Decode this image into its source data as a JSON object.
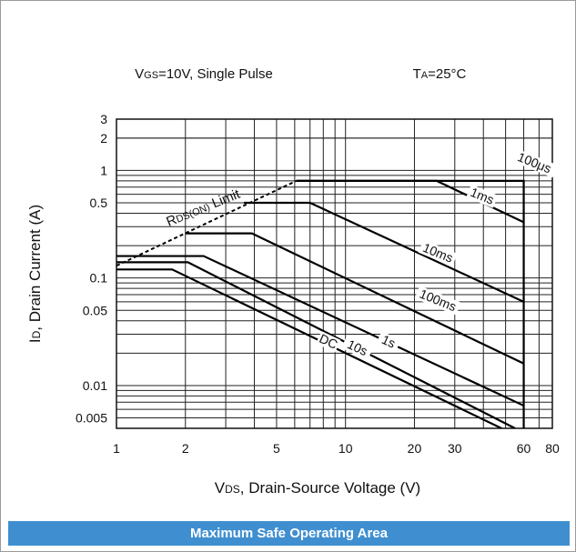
{
  "chart_data": {
    "type": "line",
    "subtitle_conditions": "VGS=10V, Single Pulse",
    "subtitle_temp": "TA=25°C",
    "cond_prefix": "V",
    "cond_sub": "GS",
    "cond_rest": "=10V, Single Pulse",
    "temp_prefix": "T",
    "temp_sub": "A",
    "temp_rest": "=25°C",
    "xlabel_prefix": "V",
    "xlabel_sub": "DS",
    "xlabel_rest": ", Drain-Source Voltage (V)",
    "ylabel_prefix": "I",
    "ylabel_sub": "D",
    "ylabel_rest": ", Drain Current (A)",
    "x_scale": "log",
    "y_scale": "log",
    "xlim": [
      1,
      80
    ],
    "ylim": [
      0.004,
      3
    ],
    "x_ticks": [
      1,
      2,
      5,
      10,
      20,
      30,
      60,
      80
    ],
    "x_tick_labels": [
      "1",
      "2",
      "5",
      "10",
      "20",
      "30",
      "60",
      "80"
    ],
    "y_ticks": [
      0.005,
      0.01,
      0.05,
      0.1,
      0.5,
      1,
      2,
      3
    ],
    "y_tick_labels": [
      "0.005",
      "0.01",
      "0.05",
      "0.1",
      "0.5",
      "1",
      "2",
      "3"
    ],
    "grid": true,
    "limit_label": {
      "prefix": "R",
      "sub": "DS(ON)",
      "rest": " Limit"
    },
    "limit_line": {
      "x": [
        1,
        6.1
      ],
      "y": [
        0.13,
        0.8
      ]
    },
    "series": [
      {
        "name": "100μs",
        "x": [
          6.1,
          60,
          60
        ],
        "y": [
          0.8,
          0.8,
          0.004
        ]
      },
      {
        "name": "1ms",
        "x": [
          6.1,
          25,
          60
        ],
        "y": [
          0.8,
          0.8,
          0.33
        ]
      },
      {
        "name": "10ms",
        "x": [
          3.6,
          7,
          60
        ],
        "y": [
          0.5,
          0.5,
          0.06
        ]
      },
      {
        "name": "100ms",
        "x": [
          2,
          3.9,
          60
        ],
        "y": [
          0.26,
          0.26,
          0.016
        ]
      },
      {
        "name": "1s",
        "x": [
          1,
          2.4,
          60
        ],
        "y": [
          0.16,
          0.16,
          0.0065
        ]
      },
      {
        "name": "10s",
        "x": [
          1,
          2.05,
          55
        ],
        "y": [
          0.14,
          0.14,
          0.004
        ]
      },
      {
        "name": "DC",
        "x": [
          1,
          1.75,
          48
        ],
        "y": [
          0.12,
          0.12,
          0.004
        ]
      }
    ],
    "curve_labels": [
      {
        "text": "100μs",
        "x": 66,
        "y": 1.1,
        "angle": 22
      },
      {
        "text": "1ms",
        "x": 39,
        "y": 0.54,
        "angle": 22
      },
      {
        "text": "10ms",
        "x": 25,
        "y": 0.16,
        "angle": 22
      },
      {
        "text": "100ms",
        "x": 25,
        "y": 0.058,
        "angle": 22
      },
      {
        "text": "1s",
        "x": 15.2,
        "y": 0.024,
        "angle": 25
      },
      {
        "text": "10s",
        "x": 11.1,
        "y": 0.021,
        "angle": 25
      },
      {
        "text": "DC",
        "x": 8.3,
        "y": 0.024,
        "angle": 25
      }
    ]
  },
  "footer": {
    "caption": "Maximum Safe Operating Area"
  }
}
